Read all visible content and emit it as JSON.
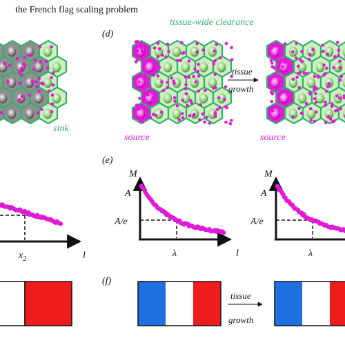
{
  "title": "the French flag scaling problem",
  "panels": {
    "d": {
      "label": "(d)",
      "heading": "tissue-wide clearance",
      "arrow_text_1": "tissue",
      "arrow_text_2": "growth",
      "source_left": "source",
      "source_right": "source"
    },
    "c_partial": {
      "sink_label": "sink"
    },
    "e": {
      "label": "(e)",
      "y_label": "M",
      "amplitude": "A",
      "amplitude_e": "A/e",
      "decay_length": "λ",
      "x_label": "l",
      "decay_length_2": "λ"
    },
    "e_partial": {
      "x_tick": "x",
      "x_tick_sub": "2",
      "x_label": "l"
    },
    "f": {
      "label": "(f)",
      "arrow_text_1": "tissue",
      "arrow_text_2": "growth"
    }
  },
  "colors": {
    "morphogen": "#e21ad8",
    "cell_fill": "#cfeec2",
    "cell_edge": "#2fb36a",
    "grey_cell": "#8f8f8f",
    "flag_blue": "#1f6fe0",
    "flag_white": "#ffffff",
    "flag_red": "#ee1c1c"
  }
}
